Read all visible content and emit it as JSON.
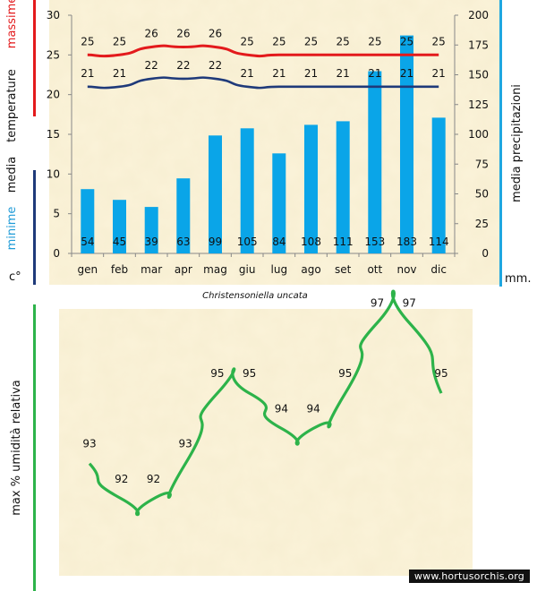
{
  "chart_data": [
    {
      "type": "bar+line",
      "title": "Christensoniella uncata",
      "categories": [
        "gen",
        "feb",
        "mar",
        "apr",
        "mag",
        "giu",
        "lug",
        "ago",
        "set",
        "ott",
        "nov",
        "dic"
      ],
      "left_axis": {
        "ylim": [
          0,
          30
        ],
        "ticks": [
          0,
          5,
          10,
          15,
          20,
          25,
          30
        ],
        "label_unit": "c°",
        "label_parts": {
          "max": "massime",
          "temp": "temperature",
          "media": "media",
          "min": "minime"
        }
      },
      "right_axis": {
        "ylim": [
          0,
          200
        ],
        "ticks": [
          0,
          25,
          50,
          75,
          100,
          125,
          150,
          175,
          200
        ],
        "label": "media  precipitazioni",
        "unit": "mm."
      },
      "series": [
        {
          "name": "massime",
          "kind": "line",
          "axis": "left",
          "color": "#e31a1c",
          "values": [
            25,
            25,
            26,
            26,
            26,
            25,
            25,
            25,
            25,
            25,
            25,
            25
          ]
        },
        {
          "name": "minime",
          "kind": "line",
          "axis": "left",
          "color": "#1f3a7a",
          "values": [
            21,
            21,
            22,
            22,
            22,
            21,
            21,
            21,
            21,
            21,
            21,
            21
          ]
        },
        {
          "name": "precipitazioni",
          "kind": "bar",
          "axis": "right",
          "color": "#0aa5e8",
          "values": [
            54,
            45,
            39,
            63,
            99,
            105,
            84,
            108,
            111,
            153,
            183,
            114
          ]
        }
      ]
    },
    {
      "type": "line",
      "ylabel": "max  %  umidità relativa",
      "color": "#2db34a",
      "categories": [
        "gen",
        "feb",
        "mar",
        "apr",
        "mag",
        "giu",
        "lug",
        "ago",
        "set",
        "ott",
        "nov",
        "dic"
      ],
      "values": [
        93,
        92,
        92,
        93,
        95,
        95,
        94,
        94,
        95,
        97,
        97,
        95
      ]
    }
  ],
  "colors": {
    "panel_bg": "#fbf3d9",
    "temp_max": "#e31a1c",
    "temp_min": "#1f3a7a",
    "precip": "#0aa5e8",
    "precip_axis_bar": "#1fa7e0",
    "humidity": "#2db34a"
  },
  "watermark": "www.hortusorchis.org"
}
